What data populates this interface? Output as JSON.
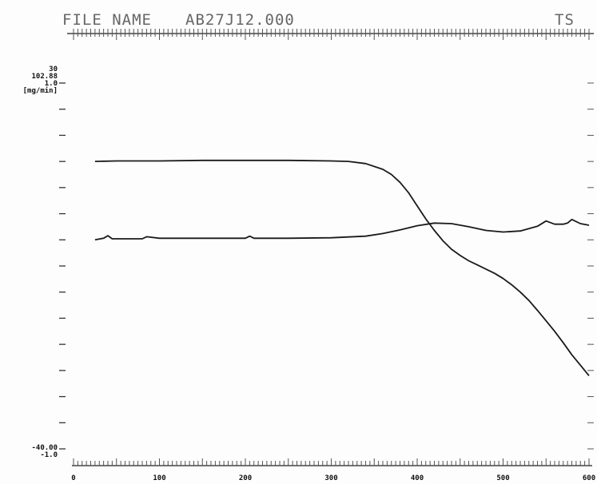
{
  "header": {
    "file_label": "FILE NAME",
    "file_value": "AB27J12.000",
    "corner_text": "TS"
  },
  "chart_data": {
    "type": "line",
    "x_range": [
      0,
      600
    ],
    "x_ticks": [
      0,
      100,
      200,
      300,
      400,
      500,
      600
    ],
    "y_range": [
      -40,
      30
    ],
    "y_top_labels": [
      "30",
      "102.88",
      "1.0",
      "[mg/min]"
    ],
    "y_bottom_labels": [
      "-40.00",
      "-1.0"
    ],
    "grid": false,
    "series": [
      {
        "color": "#1a1a1a",
        "x": [
          25,
          50,
          100,
          150,
          200,
          250,
          300,
          320,
          340,
          360,
          370,
          380,
          390,
          400,
          410,
          420,
          430,
          440,
          450,
          460,
          470,
          480,
          490,
          500,
          510,
          520,
          530,
          540,
          550,
          560,
          570,
          580,
          590,
          600
        ],
        "y": [
          15.0,
          15.1,
          15.1,
          15.2,
          15.2,
          15.2,
          15.1,
          15.0,
          14.6,
          13.5,
          12.5,
          11.0,
          9.0,
          6.5,
          4.0,
          1.8,
          -0.2,
          -1.8,
          -3.0,
          -4.0,
          -4.8,
          -5.6,
          -6.4,
          -7.4,
          -8.6,
          -10.0,
          -11.6,
          -13.5,
          -15.5,
          -17.5,
          -19.7,
          -22.0,
          -24.0,
          -26.0
        ]
      },
      {
        "color": "#1a1a1a",
        "x": [
          25,
          35,
          40,
          45,
          50,
          60,
          80,
          85,
          100,
          150,
          200,
          205,
          210,
          250,
          300,
          340,
          360,
          380,
          400,
          420,
          440,
          460,
          480,
          500,
          520,
          540,
          550,
          560,
          570,
          575,
          580,
          590,
          600
        ],
        "y": [
          0.0,
          0.3,
          0.8,
          0.2,
          0.2,
          0.2,
          0.2,
          0.6,
          0.3,
          0.3,
          0.3,
          0.7,
          0.3,
          0.3,
          0.4,
          0.7,
          1.2,
          1.9,
          2.7,
          3.2,
          3.1,
          2.5,
          1.8,
          1.5,
          1.7,
          2.6,
          3.6,
          3.0,
          3.0,
          3.2,
          3.9,
          3.1,
          2.8
        ]
      }
    ]
  }
}
